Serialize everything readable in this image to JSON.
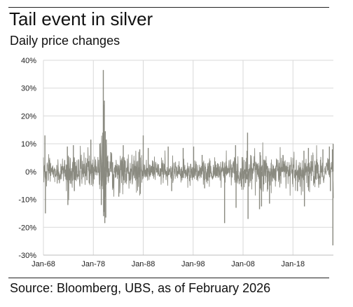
{
  "header": {
    "title": "Tail event in silver",
    "subtitle": "Daily price changes"
  },
  "footer": {
    "source": "Source: Bloomberg, UBS, as of February 2026"
  },
  "colors": {
    "series": "#8a8a80",
    "grid": "#d9d9d9",
    "axis": "#bdbdbd"
  },
  "chart_data": {
    "type": "line",
    "title": "Tail event in silver",
    "subtitle": "Daily price changes",
    "xlabel": "",
    "ylabel": "",
    "x_range": [
      1968.0,
      2026.1
    ],
    "ylim": [
      -30,
      40
    ],
    "y_unit": "%",
    "grid": true,
    "legend": "none",
    "y_ticks": [
      {
        "value": 40,
        "label": "40%"
      },
      {
        "value": 30,
        "label": "30%"
      },
      {
        "value": 20,
        "label": "20%"
      },
      {
        "value": 10,
        "label": "10%"
      },
      {
        "value": 0,
        "label": "0%"
      },
      {
        "value": -10,
        "label": "-10%"
      },
      {
        "value": -20,
        "label": "-20%"
      },
      {
        "value": -30,
        "label": "-30%"
      }
    ],
    "x_ticks": [
      {
        "value": 1968,
        "label": "Jan-68"
      },
      {
        "value": 1978,
        "label": "Jan-78"
      },
      {
        "value": 1988,
        "label": "Jan-88"
      },
      {
        "value": 1998,
        "label": "Jan-98"
      },
      {
        "value": 2008,
        "label": "Jan-08"
      },
      {
        "value": 2018,
        "label": "Jan-18"
      }
    ],
    "series": [
      {
        "volatility_regimes": [
          {
            "from": 1968.0,
            "to": 1973.0,
            "typical": 3.0
          },
          {
            "from": 1973.0,
            "to": 1979.3,
            "typical": 3.5
          },
          {
            "from": 1979.3,
            "to": 1981.0,
            "typical": 6.5
          },
          {
            "from": 1981.0,
            "to": 1988.0,
            "typical": 3.5
          },
          {
            "from": 1988.0,
            "to": 1998.0,
            "typical": 2.5
          },
          {
            "from": 1998.0,
            "to": 2006.0,
            "typical": 2.5
          },
          {
            "from": 2006.0,
            "to": 2014.0,
            "typical": 3.5
          },
          {
            "from": 2014.0,
            "to": 2026.1,
            "typical": 3.2
          }
        ],
        "extremes": [
          {
            "x": 1968.3,
            "y": 13.0
          },
          {
            "x": 1968.4,
            "y": -15.0
          },
          {
            "x": 1972.8,
            "y": 9.0
          },
          {
            "x": 1972.9,
            "y": -12.0
          },
          {
            "x": 1974.0,
            "y": 9.5
          },
          {
            "x": 1974.2,
            "y": -7.0
          },
          {
            "x": 1977.5,
            "y": 11.5
          },
          {
            "x": 1979.3,
            "y": 10.0
          },
          {
            "x": 1979.6,
            "y": -12.0
          },
          {
            "x": 1979.9,
            "y": 14.0
          },
          {
            "x": 1980.0,
            "y": 36.5
          },
          {
            "x": 1980.05,
            "y": -16.0
          },
          {
            "x": 1980.1,
            "y": 24.0
          },
          {
            "x": 1980.15,
            "y": -14.5
          },
          {
            "x": 1980.2,
            "y": 25.5
          },
          {
            "x": 1980.3,
            "y": -18.5
          },
          {
            "x": 1980.4,
            "y": 14.5
          },
          {
            "x": 1980.5,
            "y": -16.5
          },
          {
            "x": 1980.6,
            "y": 11.5
          },
          {
            "x": 1981.5,
            "y": 7.0
          },
          {
            "x": 1983.1,
            "y": -9.0
          },
          {
            "x": 1984.0,
            "y": 9.5
          },
          {
            "x": 1987.3,
            "y": 8.0
          },
          {
            "x": 1987.4,
            "y": -8.0
          },
          {
            "x": 1988.0,
            "y": 13.0
          },
          {
            "x": 1989.0,
            "y": 8.5
          },
          {
            "x": 1993.0,
            "y": 9.0
          },
          {
            "x": 1993.7,
            "y": -7.0
          },
          {
            "x": 1996.0,
            "y": 8.5
          },
          {
            "x": 1998.1,
            "y": 9.0
          },
          {
            "x": 1999.8,
            "y": 6.0
          },
          {
            "x": 2000.3,
            "y": -6.0
          },
          {
            "x": 2004.3,
            "y": -18.5
          },
          {
            "x": 2006.5,
            "y": 9.5
          },
          {
            "x": 2006.6,
            "y": -13.0
          },
          {
            "x": 2008.8,
            "y": 7.5
          },
          {
            "x": 2008.9,
            "y": 14.0
          },
          {
            "x": 2009.0,
            "y": -17.0
          },
          {
            "x": 2011.3,
            "y": -13.5
          },
          {
            "x": 2011.4,
            "y": 7.0
          },
          {
            "x": 2011.7,
            "y": -12.5
          },
          {
            "x": 2013.3,
            "y": -11.5
          },
          {
            "x": 2016.0,
            "y": 6.0
          },
          {
            "x": 2018.9,
            "y": -7.0
          },
          {
            "x": 2020.2,
            "y": 7.5
          },
          {
            "x": 2020.3,
            "y": -12.5
          },
          {
            "x": 2021.1,
            "y": 8.5
          },
          {
            "x": 2022.0,
            "y": 6.0
          },
          {
            "x": 2024.0,
            "y": 8.0
          },
          {
            "x": 2025.3,
            "y": 9.0
          },
          {
            "x": 2025.5,
            "y": -7.0
          },
          {
            "x": 2025.9,
            "y": 8.0
          },
          {
            "x": 2026.0,
            "y": -26.5
          },
          {
            "x": 2026.05,
            "y": 10.0
          }
        ]
      }
    ]
  }
}
